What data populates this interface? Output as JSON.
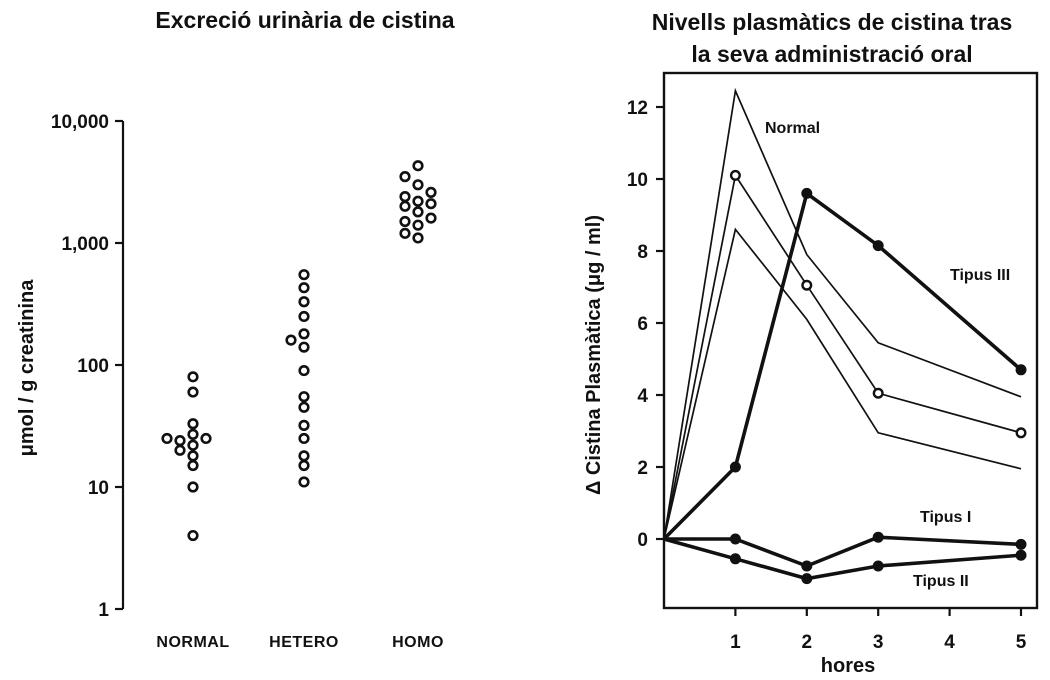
{
  "chart_data": [
    {
      "type": "scatter",
      "title": "Excreció urinària de cistina",
      "ylabel": "μmol / g creatinina",
      "yscale": "log",
      "ylim": [
        1,
        10000
      ],
      "yticks": [
        1,
        10,
        100,
        1000,
        10000
      ],
      "ytick_labels": [
        "1",
        "10",
        "100",
        "1,000",
        "10,000"
      ],
      "categories": [
        "NORMAL",
        "HETERO",
        "HOMO"
      ],
      "points": [
        {
          "category": "NORMAL",
          "values": [
            4,
            10,
            15,
            18,
            20,
            22,
            24,
            25,
            25,
            27,
            33,
            60,
            80
          ]
        },
        {
          "category": "HETERO",
          "values": [
            11,
            15,
            18,
            25,
            32,
            45,
            55,
            90,
            140,
            160,
            180,
            250,
            330,
            430,
            550
          ]
        },
        {
          "category": "HOMO",
          "values": [
            1100,
            1200,
            1400,
            1500,
            1600,
            1800,
            2000,
            2100,
            2200,
            2400,
            2600,
            3000,
            3500,
            4300
          ]
        }
      ],
      "grid": false,
      "legend": false
    },
    {
      "type": "line",
      "title": "Nivells plasmàtics de cistina tras la seva administració oral",
      "title_lines": [
        "Nivells plasmàtics de cistina tras",
        "la seva administració oral"
      ],
      "xlabel": "hores",
      "ylabel": "Δ Cistina Plasmàtica (μg / ml)",
      "xlim": [
        0,
        5
      ],
      "ylim": [
        -2,
        13
      ],
      "xticks": [
        1,
        2,
        3,
        4,
        5
      ],
      "yticks": [
        0,
        2,
        4,
        6,
        8,
        10,
        12
      ],
      "x": [
        0,
        1,
        2,
        3,
        5
      ],
      "series": [
        {
          "name": "Normal",
          "style": "thin-open-circles",
          "values": [
            0,
            10.1,
            7.05,
            4.05,
            2.95
          ]
        },
        {
          "name": "",
          "style": "thin-upper-band",
          "values": [
            0,
            12.45,
            7.9,
            5.45,
            3.95
          ]
        },
        {
          "name": "",
          "style": "thin-lower-band",
          "values": [
            0,
            8.6,
            6.1,
            2.95,
            1.95
          ]
        },
        {
          "name": "Tipus III",
          "style": "bold-filled-circles",
          "values": [
            0,
            2.0,
            9.6,
            8.15,
            4.7
          ]
        },
        {
          "name": "Tipus I",
          "style": "bold-filled-circles",
          "values": [
            0,
            0,
            -0.75,
            0.05,
            -0.15
          ]
        },
        {
          "name": "Tipus II",
          "style": "bold-filled-circles",
          "values": [
            0,
            -0.55,
            -1.1,
            -0.75,
            -0.45
          ]
        }
      ],
      "grid": false,
      "legend": false
    }
  ]
}
